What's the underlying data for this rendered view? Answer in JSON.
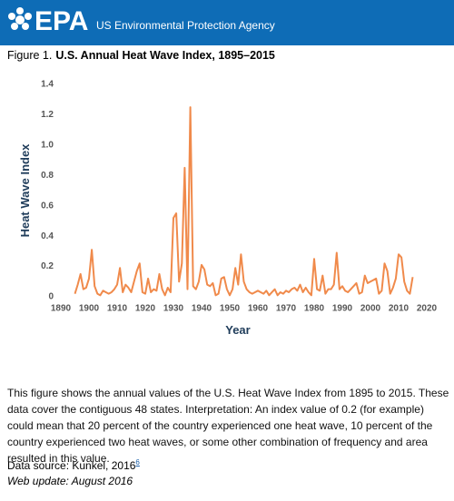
{
  "header": {
    "logo_text": "EPA",
    "agency": "US Environmental Protection Agency"
  },
  "figure_label": "Figure 1.",
  "chart_data": {
    "type": "line",
    "title": "U.S. Annual Heat Wave Index, 1895–2015",
    "x_label": "Year",
    "y_label": "Heat Wave Index",
    "series": [
      {
        "name": "Heat Wave Index",
        "color": "#f08a4b",
        "x": [
          1895,
          1896,
          1897,
          1898,
          1899,
          1900,
          1901,
          1902,
          1903,
          1904,
          1905,
          1906,
          1907,
          1908,
          1909,
          1910,
          1911,
          1912,
          1913,
          1914,
          1915,
          1916,
          1917,
          1918,
          1919,
          1920,
          1921,
          1922,
          1923,
          1924,
          1925,
          1926,
          1927,
          1928,
          1929,
          1930,
          1931,
          1932,
          1933,
          1934,
          1935,
          1936,
          1937,
          1938,
          1939,
          1940,
          1941,
          1942,
          1943,
          1944,
          1945,
          1946,
          1947,
          1948,
          1949,
          1950,
          1951,
          1952,
          1953,
          1954,
          1955,
          1956,
          1957,
          1958,
          1959,
          1960,
          1961,
          1962,
          1963,
          1964,
          1965,
          1966,
          1967,
          1968,
          1969,
          1970,
          1971,
          1972,
          1973,
          1974,
          1975,
          1976,
          1977,
          1978,
          1979,
          1980,
          1981,
          1982,
          1983,
          1984,
          1985,
          1986,
          1987,
          1988,
          1989,
          1990,
          1991,
          1992,
          1993,
          1994,
          1995,
          1996,
          1997,
          1998,
          1999,
          2000,
          2001,
          2002,
          2003,
          2004,
          2005,
          2006,
          2007,
          2008,
          2009,
          2010,
          2011,
          2012,
          2013,
          2014,
          2015
        ],
        "values": [
          0.02,
          0.08,
          0.15,
          0.05,
          0.06,
          0.12,
          0.31,
          0.07,
          0.02,
          0.01,
          0.04,
          0.03,
          0.02,
          0.03,
          0.05,
          0.08,
          0.19,
          0.03,
          0.08,
          0.06,
          0.03,
          0.1,
          0.17,
          0.22,
          0.03,
          0.02,
          0.12,
          0.03,
          0.05,
          0.04,
          0.15,
          0.05,
          0.01,
          0.06,
          0.03,
          0.52,
          0.55,
          0.1,
          0.22,
          0.85,
          0.05,
          1.25,
          0.07,
          0.05,
          0.1,
          0.21,
          0.18,
          0.08,
          0.07,
          0.09,
          0.01,
          0.02,
          0.12,
          0.13,
          0.05,
          0.01,
          0.05,
          0.19,
          0.08,
          0.28,
          0.1,
          0.05,
          0.03,
          0.02,
          0.03,
          0.04,
          0.03,
          0.02,
          0.04,
          0.01,
          0.03,
          0.05,
          0.01,
          0.03,
          0.02,
          0.04,
          0.03,
          0.05,
          0.06,
          0.04,
          0.08,
          0.03,
          0.06,
          0.03,
          0.01,
          0.25,
          0.05,
          0.04,
          0.14,
          0.02,
          0.05,
          0.05,
          0.08,
          0.29,
          0.05,
          0.07,
          0.04,
          0.03,
          0.05,
          0.07,
          0.09,
          0.02,
          0.03,
          0.14,
          0.09,
          0.1,
          0.11,
          0.12,
          0.02,
          0.04,
          0.22,
          0.17,
          0.02,
          0.06,
          0.12,
          0.28,
          0.26,
          0.1,
          0.04,
          0.02,
          0.13
        ]
      }
    ],
    "xlim": [
      1890,
      2020
    ],
    "xticks": [
      1890,
      1900,
      1910,
      1920,
      1930,
      1940,
      1950,
      1960,
      1970,
      1980,
      1990,
      2000,
      2010,
      2020
    ],
    "ylim": [
      0,
      1.4
    ],
    "yticks": [
      0,
      0.2,
      0.4,
      0.6,
      0.8,
      {
        "value": 1,
        "label": "1.0"
      },
      1.2,
      1.4
    ],
    "grid": false
  },
  "description": "This figure shows the annual values of the U.S. Heat Wave Index from 1895 to 2015. These data cover the contiguous 48 states. Interpretation: An index value of 0.2 (for example) could mean that 20 percent of the country experienced one heat wave, 10 percent of the country experienced two heat waves, or some other combination of frequency and area resulted in this value.",
  "source": {
    "text": "Data source: Kunkel, 2016",
    "note": "6"
  },
  "update": "Web update: August 2016"
}
